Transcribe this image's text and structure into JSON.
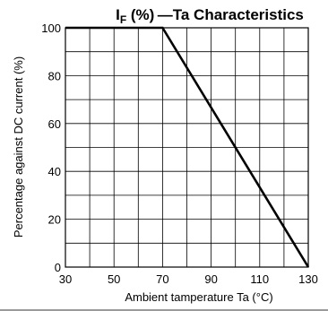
{
  "chart_data": {
    "type": "line",
    "title_main": "I",
    "title_sub": "F",
    "title_rest": " (%) —Ta Characteristics",
    "xlabel": "Ambient tamperature   Ta (°C)",
    "ylabel": "Percentage against DC current   (%)",
    "xlim": [
      30,
      130
    ],
    "ylim": [
      0,
      100
    ],
    "x_ticks": [
      30,
      50,
      70,
      90,
      110,
      130
    ],
    "y_ticks": [
      0,
      20,
      40,
      60,
      80,
      100
    ],
    "x_grid_step": 10,
    "y_grid_step": 10,
    "grid": true,
    "series": [
      {
        "x": [
          30,
          70,
          130
        ],
        "y": [
          100,
          100,
          0
        ]
      }
    ]
  }
}
